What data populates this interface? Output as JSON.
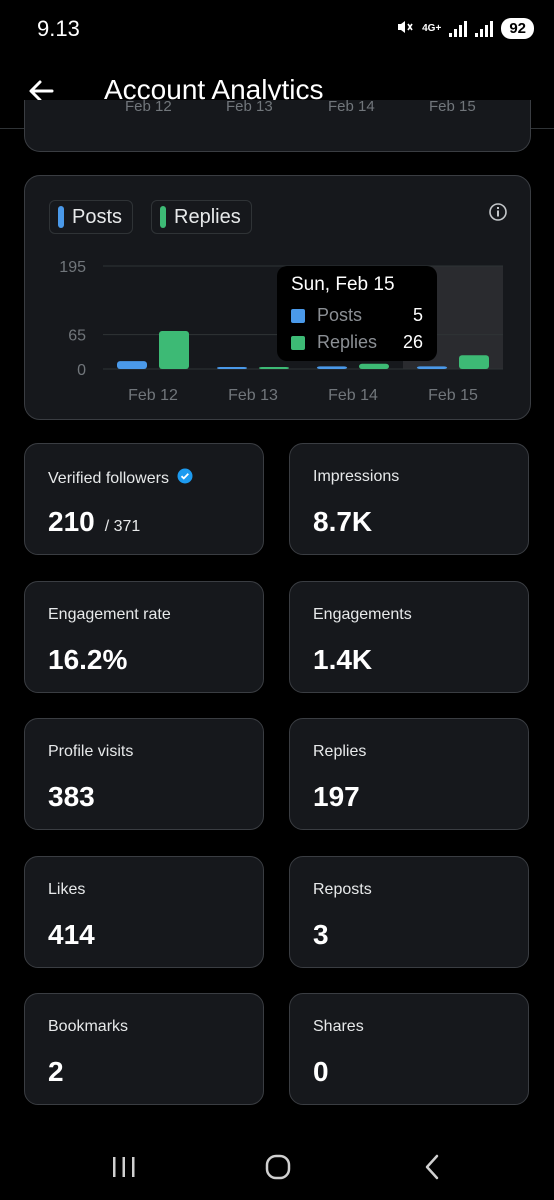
{
  "status_bar": {
    "time": "9.13",
    "network": "4G+",
    "battery": "92"
  },
  "header": {
    "title": "Account Analytics"
  },
  "previous_chart_labels": [
    "Feb 12",
    "Feb 13",
    "Feb 14",
    "Feb 15"
  ],
  "chart_legend": [
    {
      "label": "Posts",
      "color": "#4a99e9"
    },
    {
      "label": "Replies",
      "color": "#3dba75"
    }
  ],
  "chart_data": {
    "type": "bar",
    "categories": [
      "Feb 12",
      "Feb 13",
      "Feb 14",
      "Feb 15"
    ],
    "series": [
      {
        "name": "Posts",
        "values": [
          15,
          0,
          5,
          5
        ],
        "color": "#4a99e9"
      },
      {
        "name": "Replies",
        "values": [
          72,
          2,
          10,
          26
        ],
        "color": "#3dba75"
      }
    ],
    "y_ticks": [
      "195",
      "65",
      "0"
    ],
    "ylim": [
      0,
      195
    ],
    "highlighted": "Feb 15"
  },
  "tooltip": {
    "title": "Sun, Feb 15",
    "rows": [
      {
        "name": "Posts",
        "value": "5",
        "color": "#4a99e9"
      },
      {
        "name": "Replies",
        "value": "26",
        "color": "#3dba75"
      }
    ]
  },
  "stats": [
    {
      "label": "Verified followers",
      "value": "210",
      "sub": "/ 371"
    },
    {
      "label": "Impressions",
      "value": "8.7K"
    },
    {
      "label": "Engagement rate",
      "value": "16.2%"
    },
    {
      "label": "Engagements",
      "value": "1.4K"
    },
    {
      "label": "Profile visits",
      "value": "383"
    },
    {
      "label": "Replies",
      "value": "197"
    },
    {
      "label": "Likes",
      "value": "414"
    },
    {
      "label": "Reposts",
      "value": "3"
    },
    {
      "label": "Bookmarks",
      "value": "2"
    },
    {
      "label": "Shares",
      "value": "0"
    }
  ]
}
